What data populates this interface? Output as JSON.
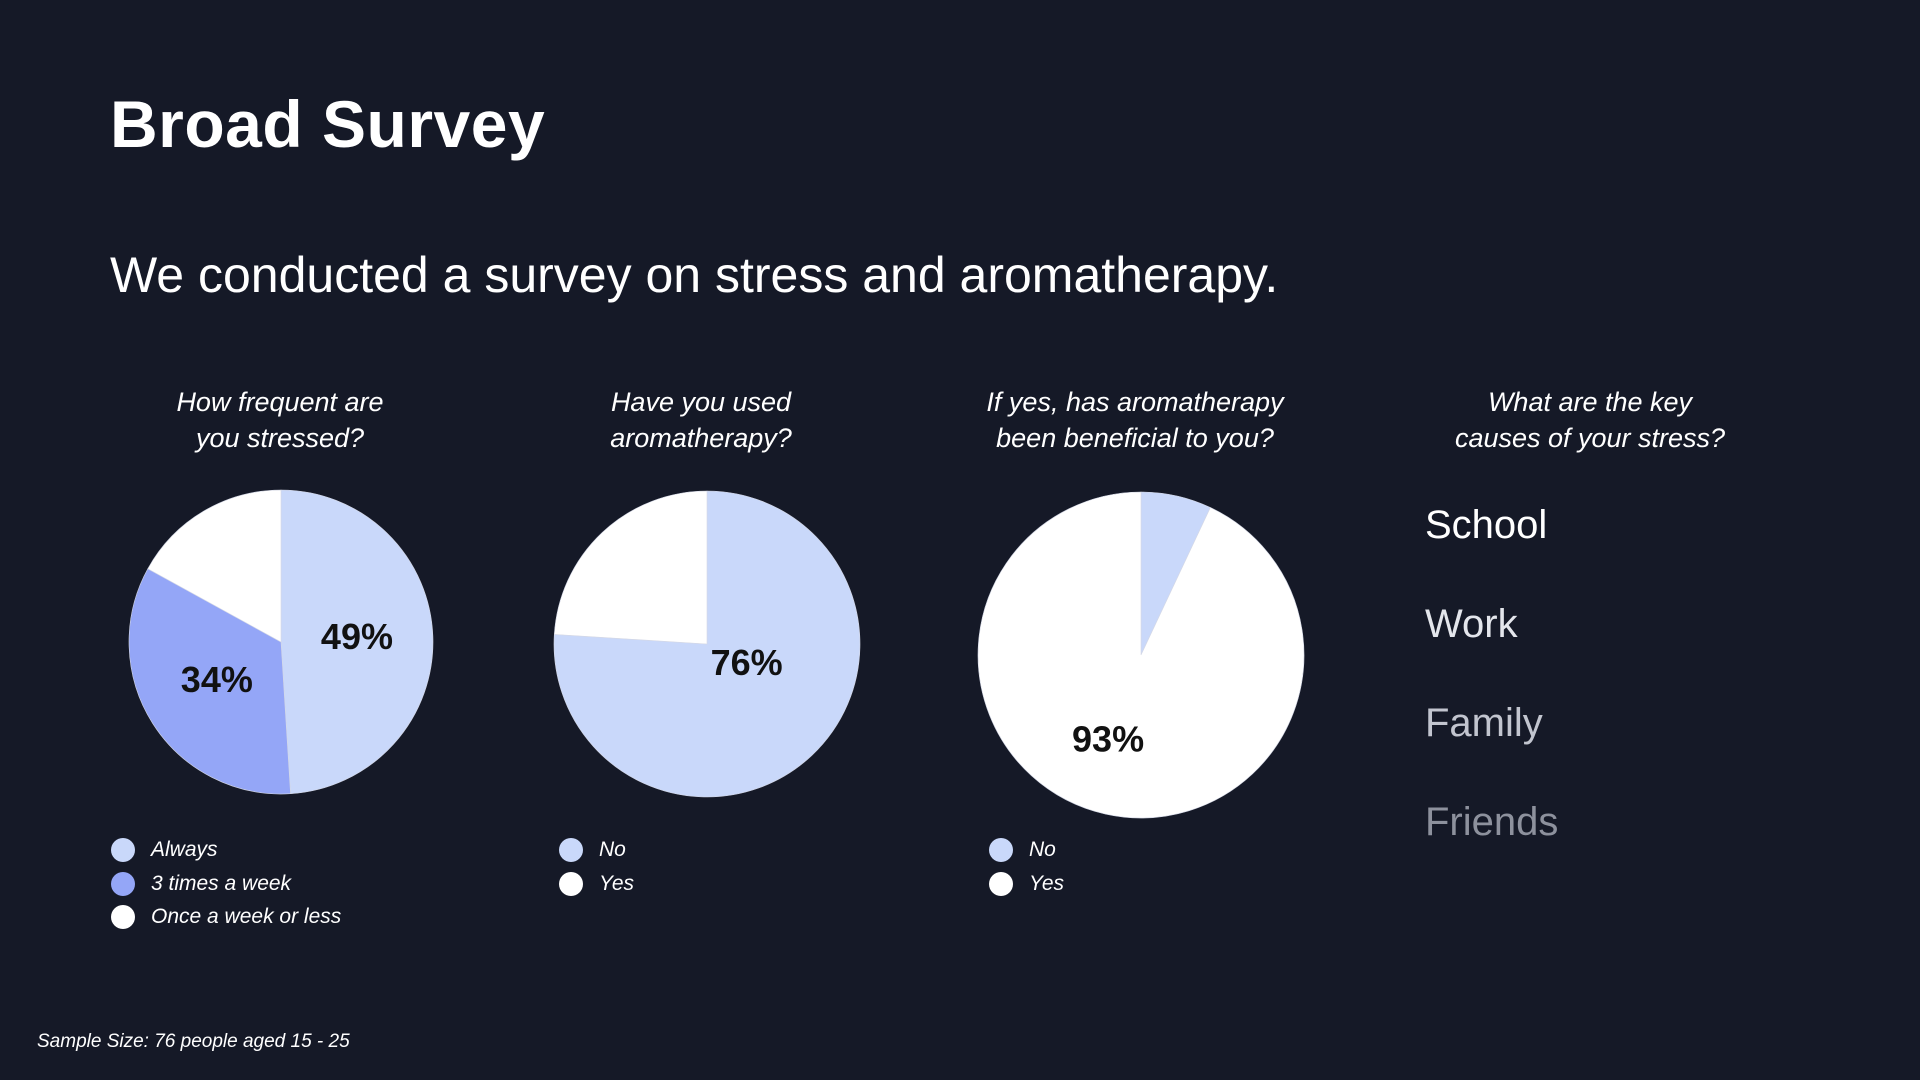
{
  "title": "Broad Survey",
  "subtitle": "We conducted a survey on stress and aromatherapy.",
  "footnote": "Sample Size: 76 people aged 15 - 25",
  "colors": {
    "background": "#151927",
    "light_blue": "#c9d8fa",
    "medium_blue": "#94a6f7",
    "white": "#ffffff"
  },
  "chart_data": [
    {
      "type": "pie",
      "title_lines": [
        "How frequent are",
        "you stressed?"
      ],
      "categories": [
        "Always",
        "3 times a week",
        "Once a week or less"
      ],
      "values": [
        49,
        34,
        17
      ],
      "colors": [
        "#c9d8fa",
        "#94a6f7",
        "#ffffff"
      ],
      "data_labels": [
        "49%",
        "34%",
        ""
      ],
      "legend": "bottom-left"
    },
    {
      "type": "pie",
      "title_lines": [
        "Have you used",
        "aromatherapy?"
      ],
      "categories": [
        "No",
        "Yes"
      ],
      "values": [
        76,
        24
      ],
      "colors": [
        "#c9d8fa",
        "#ffffff"
      ],
      "data_labels": [
        "76%",
        ""
      ],
      "legend": "bottom-left"
    },
    {
      "type": "pie",
      "title_lines": [
        "If yes, has aromatherapy",
        "been beneficial to you?"
      ],
      "categories": [
        "No",
        "Yes"
      ],
      "values": [
        7,
        93
      ],
      "colors": [
        "#c9d8fa",
        "#ffffff"
      ],
      "data_labels": [
        "",
        "93%"
      ],
      "legend": "bottom-left"
    }
  ],
  "causes_section": {
    "title_lines": [
      "What are the key",
      "causes of your stress?"
    ],
    "items": [
      "School",
      "Work",
      "Family",
      "Friends"
    ],
    "colors": [
      "#ffffff",
      "#e4e6ec",
      "#c2c5cf",
      "#8d919d"
    ]
  }
}
